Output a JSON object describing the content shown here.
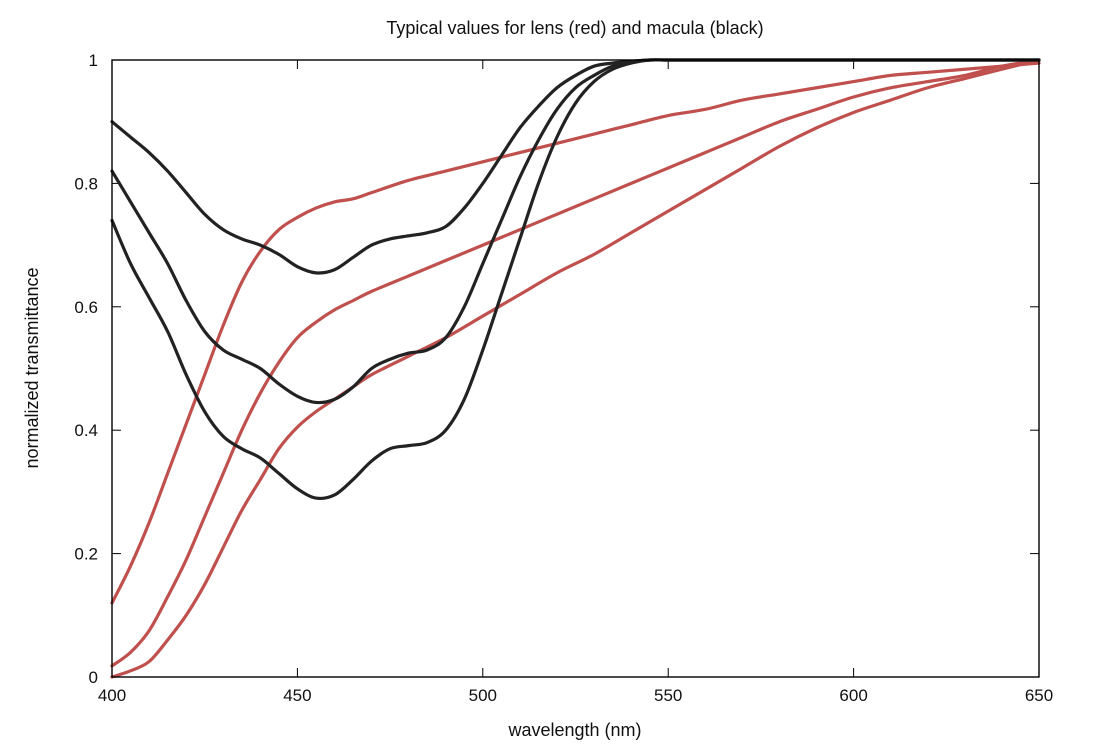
{
  "chart_data": {
    "type": "line",
    "title": "Typical values for lens (red) and macula (black)",
    "xlabel": "wavelength (nm)",
    "ylabel": "normalized transmittance",
    "xlim": [
      400,
      650
    ],
    "ylim": [
      0,
      1
    ],
    "xticks": [
      400,
      450,
      500,
      550,
      600,
      650
    ],
    "xtick_labels": [
      "400",
      "450",
      "500",
      "550",
      "600",
      "650"
    ],
    "yticks": [
      0,
      0.2,
      0.4,
      0.6,
      0.8,
      1
    ],
    "ytick_labels": [
      "0",
      "0.2",
      "0.4",
      "0.6",
      "0.8",
      "1"
    ],
    "grid": false,
    "legend": "none",
    "colors": {
      "lens": "#c0504d",
      "macula": "#222222",
      "frame": "#000000"
    },
    "series": [
      {
        "group": "lens",
        "x": [
          400,
          405,
          410,
          415,
          420,
          425,
          430,
          435,
          440,
          445,
          450,
          455,
          460,
          465,
          470,
          480,
          490,
          500,
          510,
          520,
          530,
          540,
          550,
          560,
          570,
          580,
          590,
          600,
          610,
          620,
          630,
          640,
          650
        ],
        "y": [
          0.12,
          0.18,
          0.25,
          0.33,
          0.41,
          0.49,
          0.57,
          0.64,
          0.69,
          0.725,
          0.745,
          0.76,
          0.77,
          0.775,
          0.785,
          0.805,
          0.82,
          0.835,
          0.85,
          0.865,
          0.88,
          0.895,
          0.91,
          0.92,
          0.935,
          0.945,
          0.955,
          0.965,
          0.975,
          0.98,
          0.985,
          0.99,
          0.995
        ]
      },
      {
        "group": "lens",
        "x": [
          400,
          405,
          410,
          415,
          420,
          425,
          430,
          435,
          440,
          445,
          450,
          455,
          460,
          465,
          470,
          480,
          490,
          500,
          510,
          520,
          530,
          540,
          550,
          560,
          570,
          580,
          590,
          600,
          610,
          620,
          630,
          640,
          650
        ],
        "y": [
          0.018,
          0.04,
          0.075,
          0.13,
          0.19,
          0.26,
          0.33,
          0.4,
          0.46,
          0.51,
          0.55,
          0.575,
          0.595,
          0.61,
          0.625,
          0.65,
          0.675,
          0.7,
          0.725,
          0.75,
          0.775,
          0.8,
          0.825,
          0.85,
          0.875,
          0.9,
          0.92,
          0.94,
          0.955,
          0.965,
          0.975,
          0.99,
          1.0
        ]
      },
      {
        "group": "lens",
        "x": [
          400,
          405,
          410,
          415,
          420,
          425,
          430,
          435,
          440,
          445,
          450,
          455,
          460,
          465,
          470,
          480,
          490,
          500,
          510,
          520,
          530,
          540,
          550,
          560,
          570,
          580,
          590,
          600,
          610,
          620,
          630,
          640,
          650
        ],
        "y": [
          0.0,
          0.01,
          0.025,
          0.06,
          0.1,
          0.15,
          0.21,
          0.27,
          0.32,
          0.37,
          0.405,
          0.43,
          0.45,
          0.47,
          0.49,
          0.52,
          0.55,
          0.585,
          0.62,
          0.655,
          0.685,
          0.72,
          0.755,
          0.79,
          0.825,
          0.86,
          0.89,
          0.915,
          0.935,
          0.955,
          0.97,
          0.985,
          1.0
        ]
      },
      {
        "group": "macula",
        "x": [
          400,
          405,
          410,
          415,
          420,
          425,
          430,
          435,
          440,
          445,
          450,
          455,
          460,
          465,
          470,
          475,
          480,
          485,
          490,
          495,
          500,
          505,
          510,
          515,
          520,
          525,
          530,
          535,
          540,
          545,
          550,
          560,
          580,
          600,
          620,
          640,
          650
        ],
        "y": [
          0.9,
          0.875,
          0.85,
          0.82,
          0.785,
          0.75,
          0.725,
          0.71,
          0.7,
          0.685,
          0.665,
          0.655,
          0.66,
          0.68,
          0.7,
          0.71,
          0.715,
          0.72,
          0.73,
          0.76,
          0.8,
          0.845,
          0.89,
          0.925,
          0.955,
          0.975,
          0.99,
          0.995,
          0.998,
          1.0,
          1.0,
          1.0,
          1.0,
          1.0,
          1.0,
          1.0,
          1.0
        ]
      },
      {
        "group": "macula",
        "x": [
          400,
          405,
          410,
          415,
          420,
          425,
          430,
          435,
          440,
          445,
          450,
          455,
          460,
          465,
          470,
          475,
          480,
          485,
          490,
          495,
          500,
          505,
          510,
          515,
          520,
          525,
          530,
          535,
          540,
          545,
          550,
          560,
          580,
          600,
          620,
          640,
          650
        ],
        "y": [
          0.82,
          0.77,
          0.72,
          0.67,
          0.61,
          0.56,
          0.53,
          0.515,
          0.5,
          0.475,
          0.455,
          0.445,
          0.45,
          0.47,
          0.5,
          0.515,
          0.525,
          0.53,
          0.55,
          0.6,
          0.67,
          0.74,
          0.81,
          0.87,
          0.92,
          0.955,
          0.975,
          0.99,
          0.997,
          1.0,
          1.0,
          1.0,
          1.0,
          1.0,
          1.0,
          1.0,
          1.0
        ]
      },
      {
        "group": "macula",
        "x": [
          400,
          405,
          410,
          415,
          420,
          425,
          430,
          435,
          440,
          445,
          450,
          455,
          460,
          465,
          470,
          475,
          480,
          485,
          490,
          495,
          500,
          505,
          510,
          515,
          520,
          525,
          530,
          535,
          540,
          545,
          550,
          560,
          580,
          600,
          620,
          640,
          650
        ],
        "y": [
          0.74,
          0.67,
          0.615,
          0.56,
          0.49,
          0.43,
          0.39,
          0.37,
          0.355,
          0.33,
          0.305,
          0.29,
          0.295,
          0.32,
          0.35,
          0.37,
          0.375,
          0.38,
          0.4,
          0.45,
          0.53,
          0.62,
          0.71,
          0.8,
          0.875,
          0.93,
          0.965,
          0.985,
          0.995,
          1.0,
          1.0,
          1.0,
          1.0,
          1.0,
          1.0,
          1.0,
          1.0
        ]
      }
    ]
  }
}
